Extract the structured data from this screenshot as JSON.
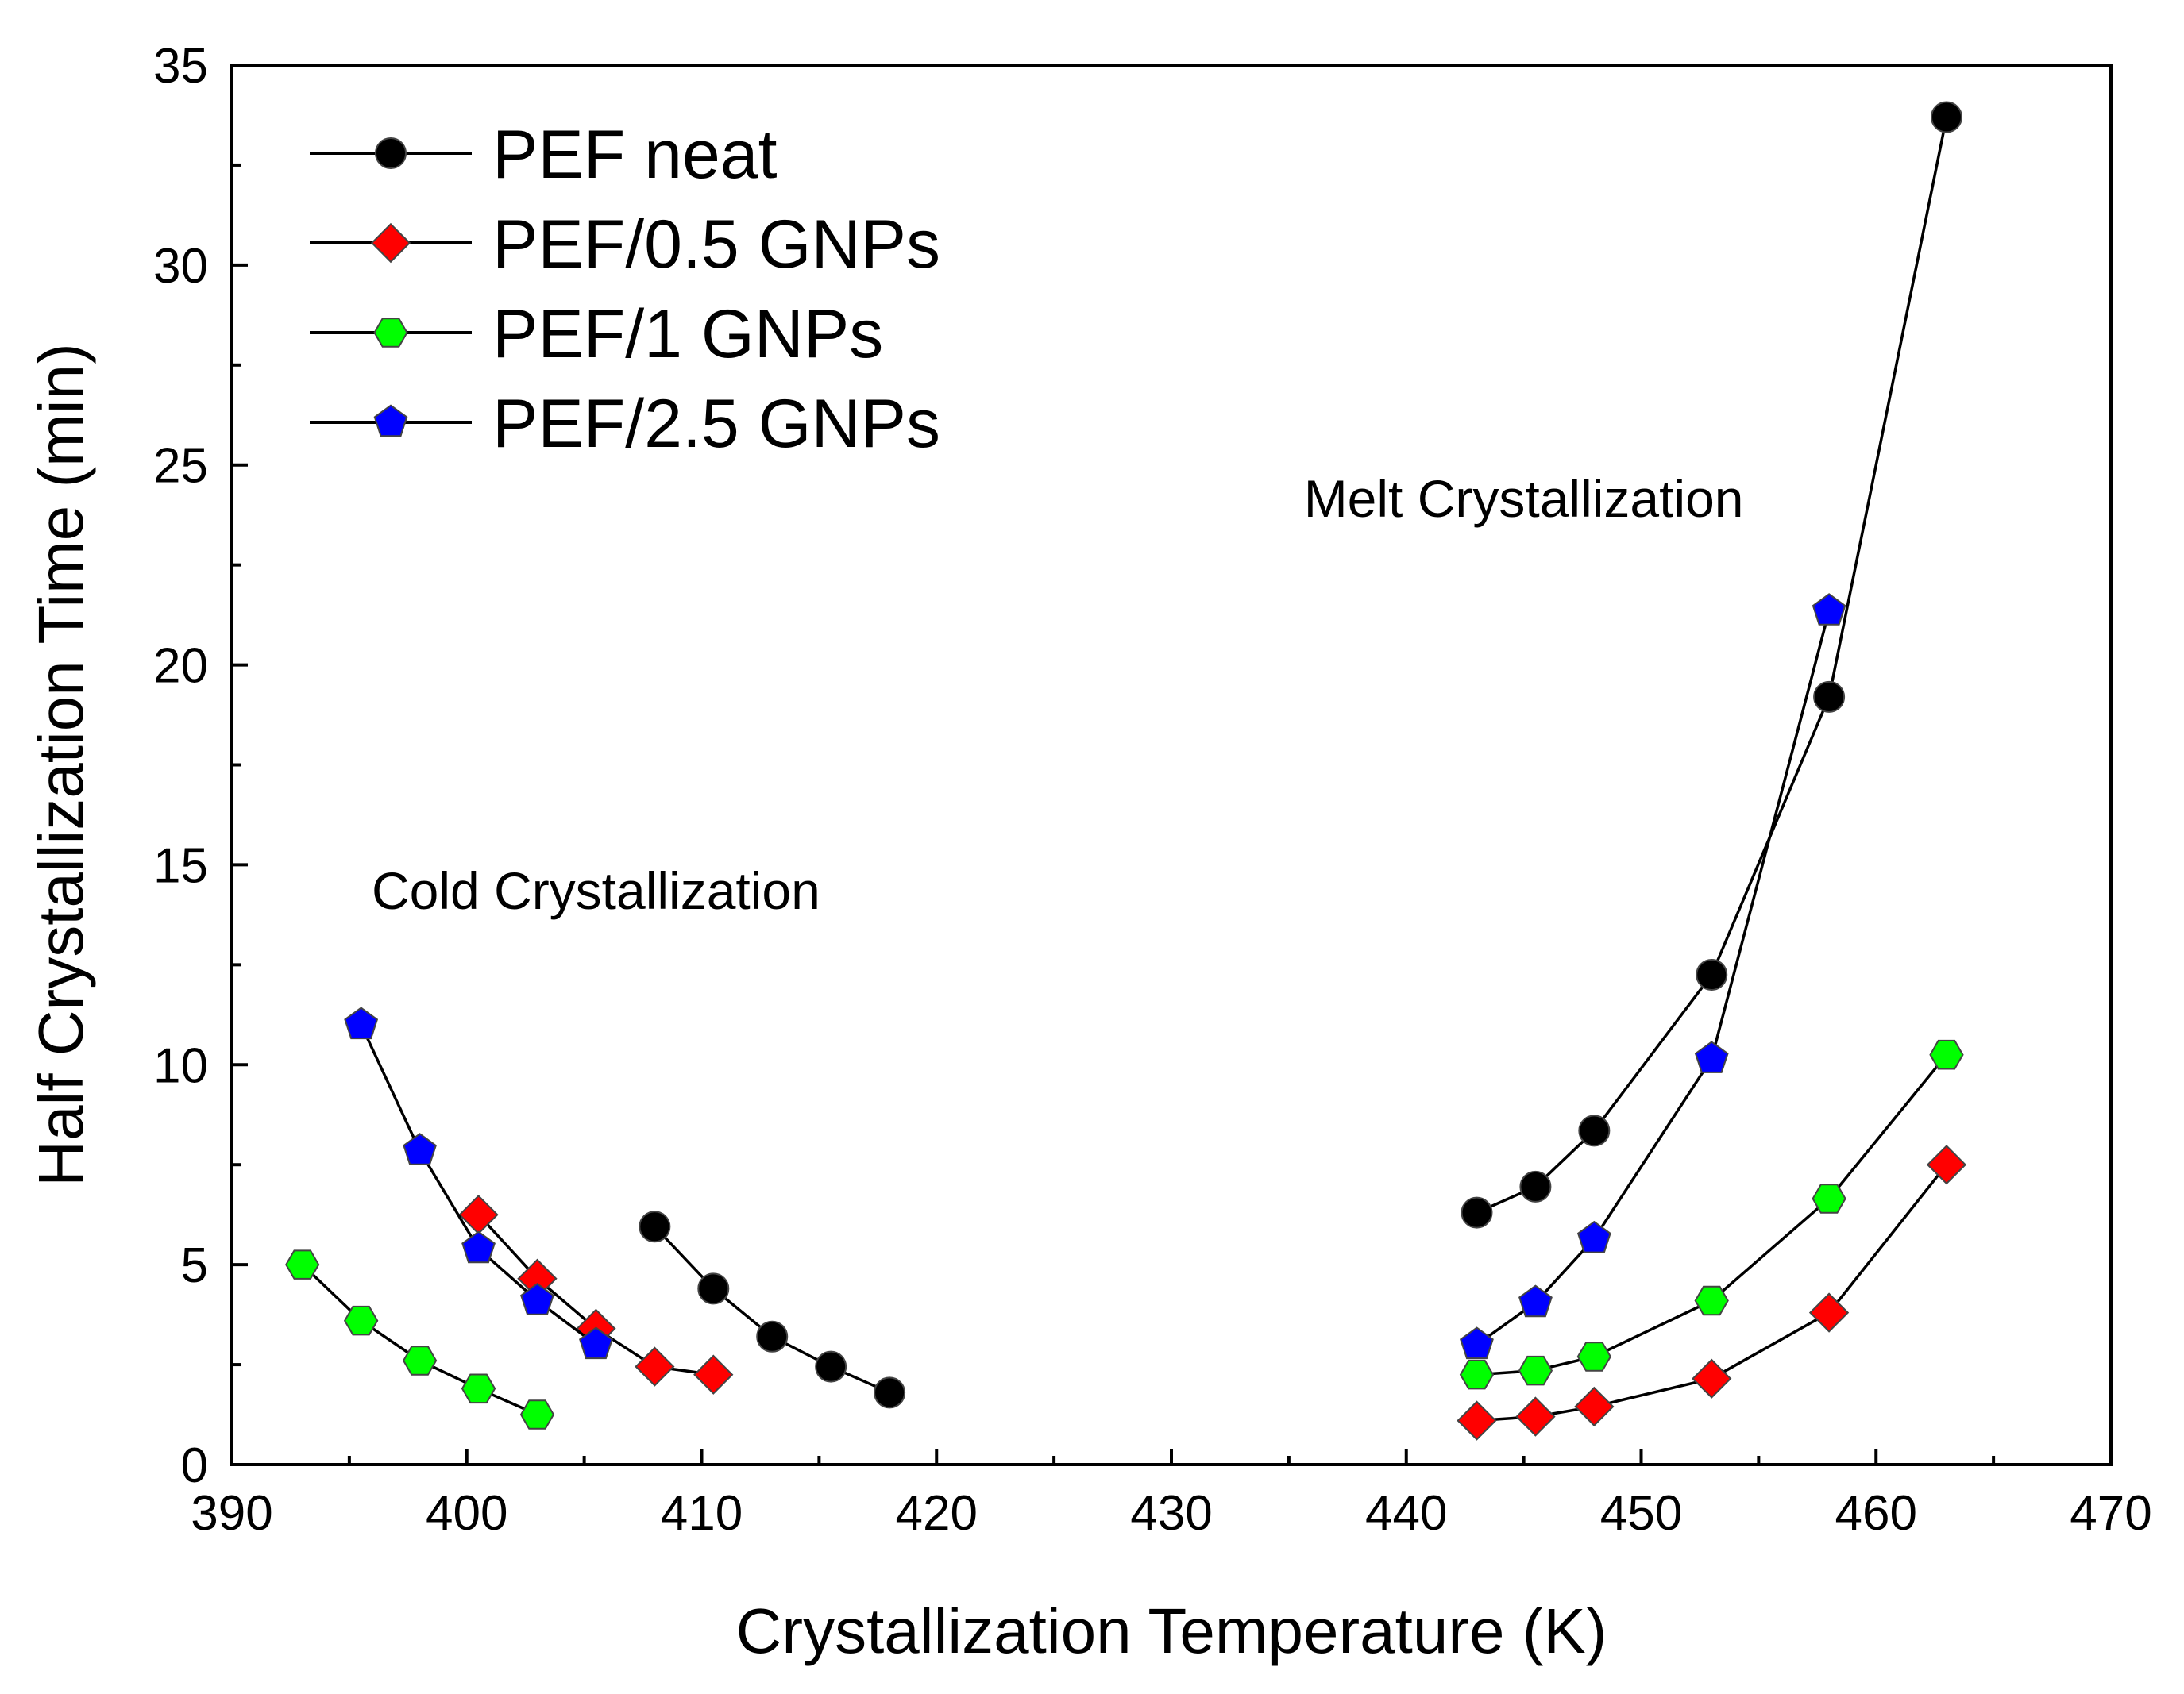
{
  "chart_data": {
    "type": "scatter",
    "title": "",
    "xlabel": "Crystallization Temperature (K)",
    "ylabel": "Half Crystallization Time (min)",
    "xlim": [
      390,
      470
    ],
    "ylim": [
      0,
      35
    ],
    "x_ticks": [
      390,
      400,
      410,
      420,
      430,
      440,
      450,
      460,
      470
    ],
    "y_ticks": [
      0,
      5,
      10,
      15,
      20,
      25,
      30,
      35
    ],
    "grid": false,
    "legend_position": "top-left",
    "annotations": [
      {
        "text": "Cold Crystallization",
        "x": 405.5,
        "y": 13.9
      },
      {
        "text": "Melt Crystallization",
        "x": 445.0,
        "y": 23.7
      }
    ],
    "series": [
      {
        "name": "PEF neat",
        "color": "#000000",
        "marker": "circle",
        "segments": [
          [
            [
              408,
              5.95
            ],
            [
              410.5,
              4.4
            ],
            [
              413,
              3.2
            ],
            [
              415.5,
              2.45
            ],
            [
              418,
              1.8
            ]
          ],
          [
            [
              443,
              6.3
            ],
            [
              445.5,
              6.95
            ],
            [
              448,
              8.35
            ],
            [
              453,
              12.25
            ],
            [
              458,
              19.2
            ],
            [
              463,
              33.7
            ]
          ]
        ]
      },
      {
        "name": "PEF/0.5 GNPs",
        "color": "#ff0000",
        "marker": "diamond",
        "segments": [
          [
            [
              400.5,
              6.25
            ],
            [
              403,
              4.65
            ],
            [
              405.5,
              3.4
            ],
            [
              408,
              2.45
            ],
            [
              410.5,
              2.25
            ]
          ],
          [
            [
              443,
              1.1
            ],
            [
              445.5,
              1.2
            ],
            [
              448,
              1.45
            ],
            [
              453,
              2.15
            ],
            [
              458,
              3.8
            ],
            [
              463,
              7.5
            ]
          ]
        ]
      },
      {
        "name": "PEF/1 GNPs",
        "color": "#00ff00",
        "marker": "hexagon",
        "segments": [
          [
            [
              393,
              5.0
            ],
            [
              395.5,
              3.6
            ],
            [
              398,
              2.6
            ],
            [
              400.5,
              1.9
            ],
            [
              403,
              1.25
            ]
          ],
          [
            [
              443,
              2.25
            ],
            [
              445.5,
              2.35
            ],
            [
              448,
              2.7
            ],
            [
              453,
              4.1
            ],
            [
              458,
              6.65
            ],
            [
              463,
              10.25
            ]
          ]
        ]
      },
      {
        "name": "PEF/2.5 GNPs",
        "color": "#0000ff",
        "marker": "pentagon",
        "segments": [
          [
            [
              395.5,
              11.0
            ],
            [
              398,
              7.85
            ],
            [
              400.5,
              5.4
            ],
            [
              403,
              4.1
            ],
            [
              405.5,
              3.0
            ]
          ],
          [
            [
              443,
              3.0
            ],
            [
              445.5,
              4.05
            ],
            [
              448,
              5.65
            ],
            [
              453,
              10.15
            ],
            [
              458,
              21.35
            ]
          ]
        ]
      }
    ]
  }
}
